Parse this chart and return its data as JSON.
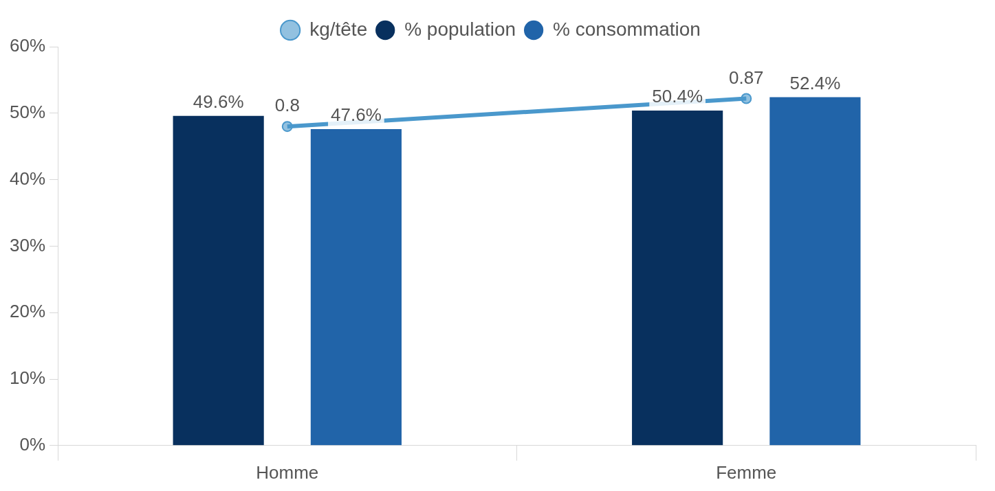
{
  "chart_data": {
    "type": "bar",
    "categories": [
      "Homme",
      "Femme"
    ],
    "series": [
      {
        "name": "kg/tête",
        "type": "line",
        "axis": "y2",
        "color": "#4a98cc",
        "values": [
          0.8,
          0.87
        ],
        "value_labels": [
          "0.8",
          "0.87"
        ]
      },
      {
        "name": "% population",
        "color": "#08305e",
        "values": [
          49.6,
          50.4
        ],
        "value_labels": [
          "49.6%",
          "50.4%"
        ]
      },
      {
        "name": "% consommation",
        "color": "#2164a9",
        "values": [
          47.6,
          52.4
        ],
        "value_labels": [
          "47.6%",
          "52.4%"
        ]
      }
    ],
    "ylim": [
      0,
      60
    ],
    "yticks": [
      {
        "value": 0,
        "label": "0%"
      },
      {
        "value": 10,
        "label": "10%"
      },
      {
        "value": 20,
        "label": "20%"
      },
      {
        "value": 30,
        "label": "30%"
      },
      {
        "value": 40,
        "label": "40%"
      },
      {
        "value": 50,
        "label": "50%"
      },
      {
        "value": 60,
        "label": "60%"
      }
    ],
    "y2lim": [
      0,
      1
    ],
    "grid": false,
    "legend": "top",
    "marker": "circle",
    "tick_labels": "xy"
  }
}
